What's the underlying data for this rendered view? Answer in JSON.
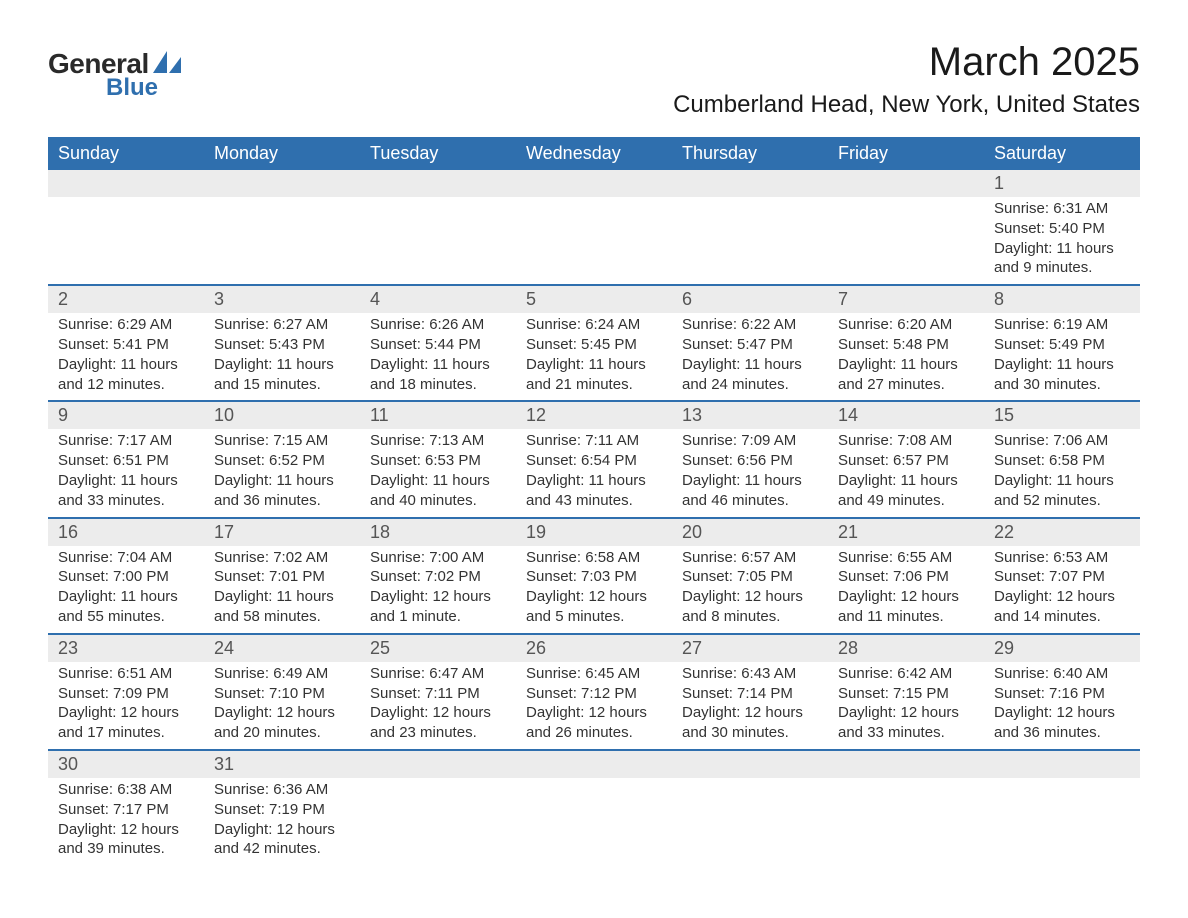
{
  "brand": {
    "general": "General",
    "blue": "Blue"
  },
  "title": "March 2025",
  "location": "Cumberland Head, New York, United States",
  "colors": {
    "header_bg": "#2f6fae",
    "header_text": "#ffffff",
    "daynum_bg": "#ececec",
    "row_divider": "#2f6fae",
    "text": "#333333",
    "background": "#ffffff"
  },
  "typography": {
    "title_fontsize": 40,
    "location_fontsize": 24,
    "header_fontsize": 18,
    "daynum_fontsize": 18,
    "body_fontsize": 15
  },
  "daysOfWeek": [
    "Sunday",
    "Monday",
    "Tuesday",
    "Wednesday",
    "Thursday",
    "Friday",
    "Saturday"
  ],
  "weeks": [
    [
      null,
      null,
      null,
      null,
      null,
      null,
      {
        "n": "1",
        "sunrise": "Sunrise: 6:31 AM",
        "sunset": "Sunset: 5:40 PM",
        "daylight": "Daylight: 11 hours and 9 minutes."
      }
    ],
    [
      {
        "n": "2",
        "sunrise": "Sunrise: 6:29 AM",
        "sunset": "Sunset: 5:41 PM",
        "daylight": "Daylight: 11 hours and 12 minutes."
      },
      {
        "n": "3",
        "sunrise": "Sunrise: 6:27 AM",
        "sunset": "Sunset: 5:43 PM",
        "daylight": "Daylight: 11 hours and 15 minutes."
      },
      {
        "n": "4",
        "sunrise": "Sunrise: 6:26 AM",
        "sunset": "Sunset: 5:44 PM",
        "daylight": "Daylight: 11 hours and 18 minutes."
      },
      {
        "n": "5",
        "sunrise": "Sunrise: 6:24 AM",
        "sunset": "Sunset: 5:45 PM",
        "daylight": "Daylight: 11 hours and 21 minutes."
      },
      {
        "n": "6",
        "sunrise": "Sunrise: 6:22 AM",
        "sunset": "Sunset: 5:47 PM",
        "daylight": "Daylight: 11 hours and 24 minutes."
      },
      {
        "n": "7",
        "sunrise": "Sunrise: 6:20 AM",
        "sunset": "Sunset: 5:48 PM",
        "daylight": "Daylight: 11 hours and 27 minutes."
      },
      {
        "n": "8",
        "sunrise": "Sunrise: 6:19 AM",
        "sunset": "Sunset: 5:49 PM",
        "daylight": "Daylight: 11 hours and 30 minutes."
      }
    ],
    [
      {
        "n": "9",
        "sunrise": "Sunrise: 7:17 AM",
        "sunset": "Sunset: 6:51 PM",
        "daylight": "Daylight: 11 hours and 33 minutes."
      },
      {
        "n": "10",
        "sunrise": "Sunrise: 7:15 AM",
        "sunset": "Sunset: 6:52 PM",
        "daylight": "Daylight: 11 hours and 36 minutes."
      },
      {
        "n": "11",
        "sunrise": "Sunrise: 7:13 AM",
        "sunset": "Sunset: 6:53 PM",
        "daylight": "Daylight: 11 hours and 40 minutes."
      },
      {
        "n": "12",
        "sunrise": "Sunrise: 7:11 AM",
        "sunset": "Sunset: 6:54 PM",
        "daylight": "Daylight: 11 hours and 43 minutes."
      },
      {
        "n": "13",
        "sunrise": "Sunrise: 7:09 AM",
        "sunset": "Sunset: 6:56 PM",
        "daylight": "Daylight: 11 hours and 46 minutes."
      },
      {
        "n": "14",
        "sunrise": "Sunrise: 7:08 AM",
        "sunset": "Sunset: 6:57 PM",
        "daylight": "Daylight: 11 hours and 49 minutes."
      },
      {
        "n": "15",
        "sunrise": "Sunrise: 7:06 AM",
        "sunset": "Sunset: 6:58 PM",
        "daylight": "Daylight: 11 hours and 52 minutes."
      }
    ],
    [
      {
        "n": "16",
        "sunrise": "Sunrise: 7:04 AM",
        "sunset": "Sunset: 7:00 PM",
        "daylight": "Daylight: 11 hours and 55 minutes."
      },
      {
        "n": "17",
        "sunrise": "Sunrise: 7:02 AM",
        "sunset": "Sunset: 7:01 PM",
        "daylight": "Daylight: 11 hours and 58 minutes."
      },
      {
        "n": "18",
        "sunrise": "Sunrise: 7:00 AM",
        "sunset": "Sunset: 7:02 PM",
        "daylight": "Daylight: 12 hours and 1 minute."
      },
      {
        "n": "19",
        "sunrise": "Sunrise: 6:58 AM",
        "sunset": "Sunset: 7:03 PM",
        "daylight": "Daylight: 12 hours and 5 minutes."
      },
      {
        "n": "20",
        "sunrise": "Sunrise: 6:57 AM",
        "sunset": "Sunset: 7:05 PM",
        "daylight": "Daylight: 12 hours and 8 minutes."
      },
      {
        "n": "21",
        "sunrise": "Sunrise: 6:55 AM",
        "sunset": "Sunset: 7:06 PM",
        "daylight": "Daylight: 12 hours and 11 minutes."
      },
      {
        "n": "22",
        "sunrise": "Sunrise: 6:53 AM",
        "sunset": "Sunset: 7:07 PM",
        "daylight": "Daylight: 12 hours and 14 minutes."
      }
    ],
    [
      {
        "n": "23",
        "sunrise": "Sunrise: 6:51 AM",
        "sunset": "Sunset: 7:09 PM",
        "daylight": "Daylight: 12 hours and 17 minutes."
      },
      {
        "n": "24",
        "sunrise": "Sunrise: 6:49 AM",
        "sunset": "Sunset: 7:10 PM",
        "daylight": "Daylight: 12 hours and 20 minutes."
      },
      {
        "n": "25",
        "sunrise": "Sunrise: 6:47 AM",
        "sunset": "Sunset: 7:11 PM",
        "daylight": "Daylight: 12 hours and 23 minutes."
      },
      {
        "n": "26",
        "sunrise": "Sunrise: 6:45 AM",
        "sunset": "Sunset: 7:12 PM",
        "daylight": "Daylight: 12 hours and 26 minutes."
      },
      {
        "n": "27",
        "sunrise": "Sunrise: 6:43 AM",
        "sunset": "Sunset: 7:14 PM",
        "daylight": "Daylight: 12 hours and 30 minutes."
      },
      {
        "n": "28",
        "sunrise": "Sunrise: 6:42 AM",
        "sunset": "Sunset: 7:15 PM",
        "daylight": "Daylight: 12 hours and 33 minutes."
      },
      {
        "n": "29",
        "sunrise": "Sunrise: 6:40 AM",
        "sunset": "Sunset: 7:16 PM",
        "daylight": "Daylight: 12 hours and 36 minutes."
      }
    ],
    [
      {
        "n": "30",
        "sunrise": "Sunrise: 6:38 AM",
        "sunset": "Sunset: 7:17 PM",
        "daylight": "Daylight: 12 hours and 39 minutes."
      },
      {
        "n": "31",
        "sunrise": "Sunrise: 6:36 AM",
        "sunset": "Sunset: 7:19 PM",
        "daylight": "Daylight: 12 hours and 42 minutes."
      },
      null,
      null,
      null,
      null,
      null
    ]
  ]
}
